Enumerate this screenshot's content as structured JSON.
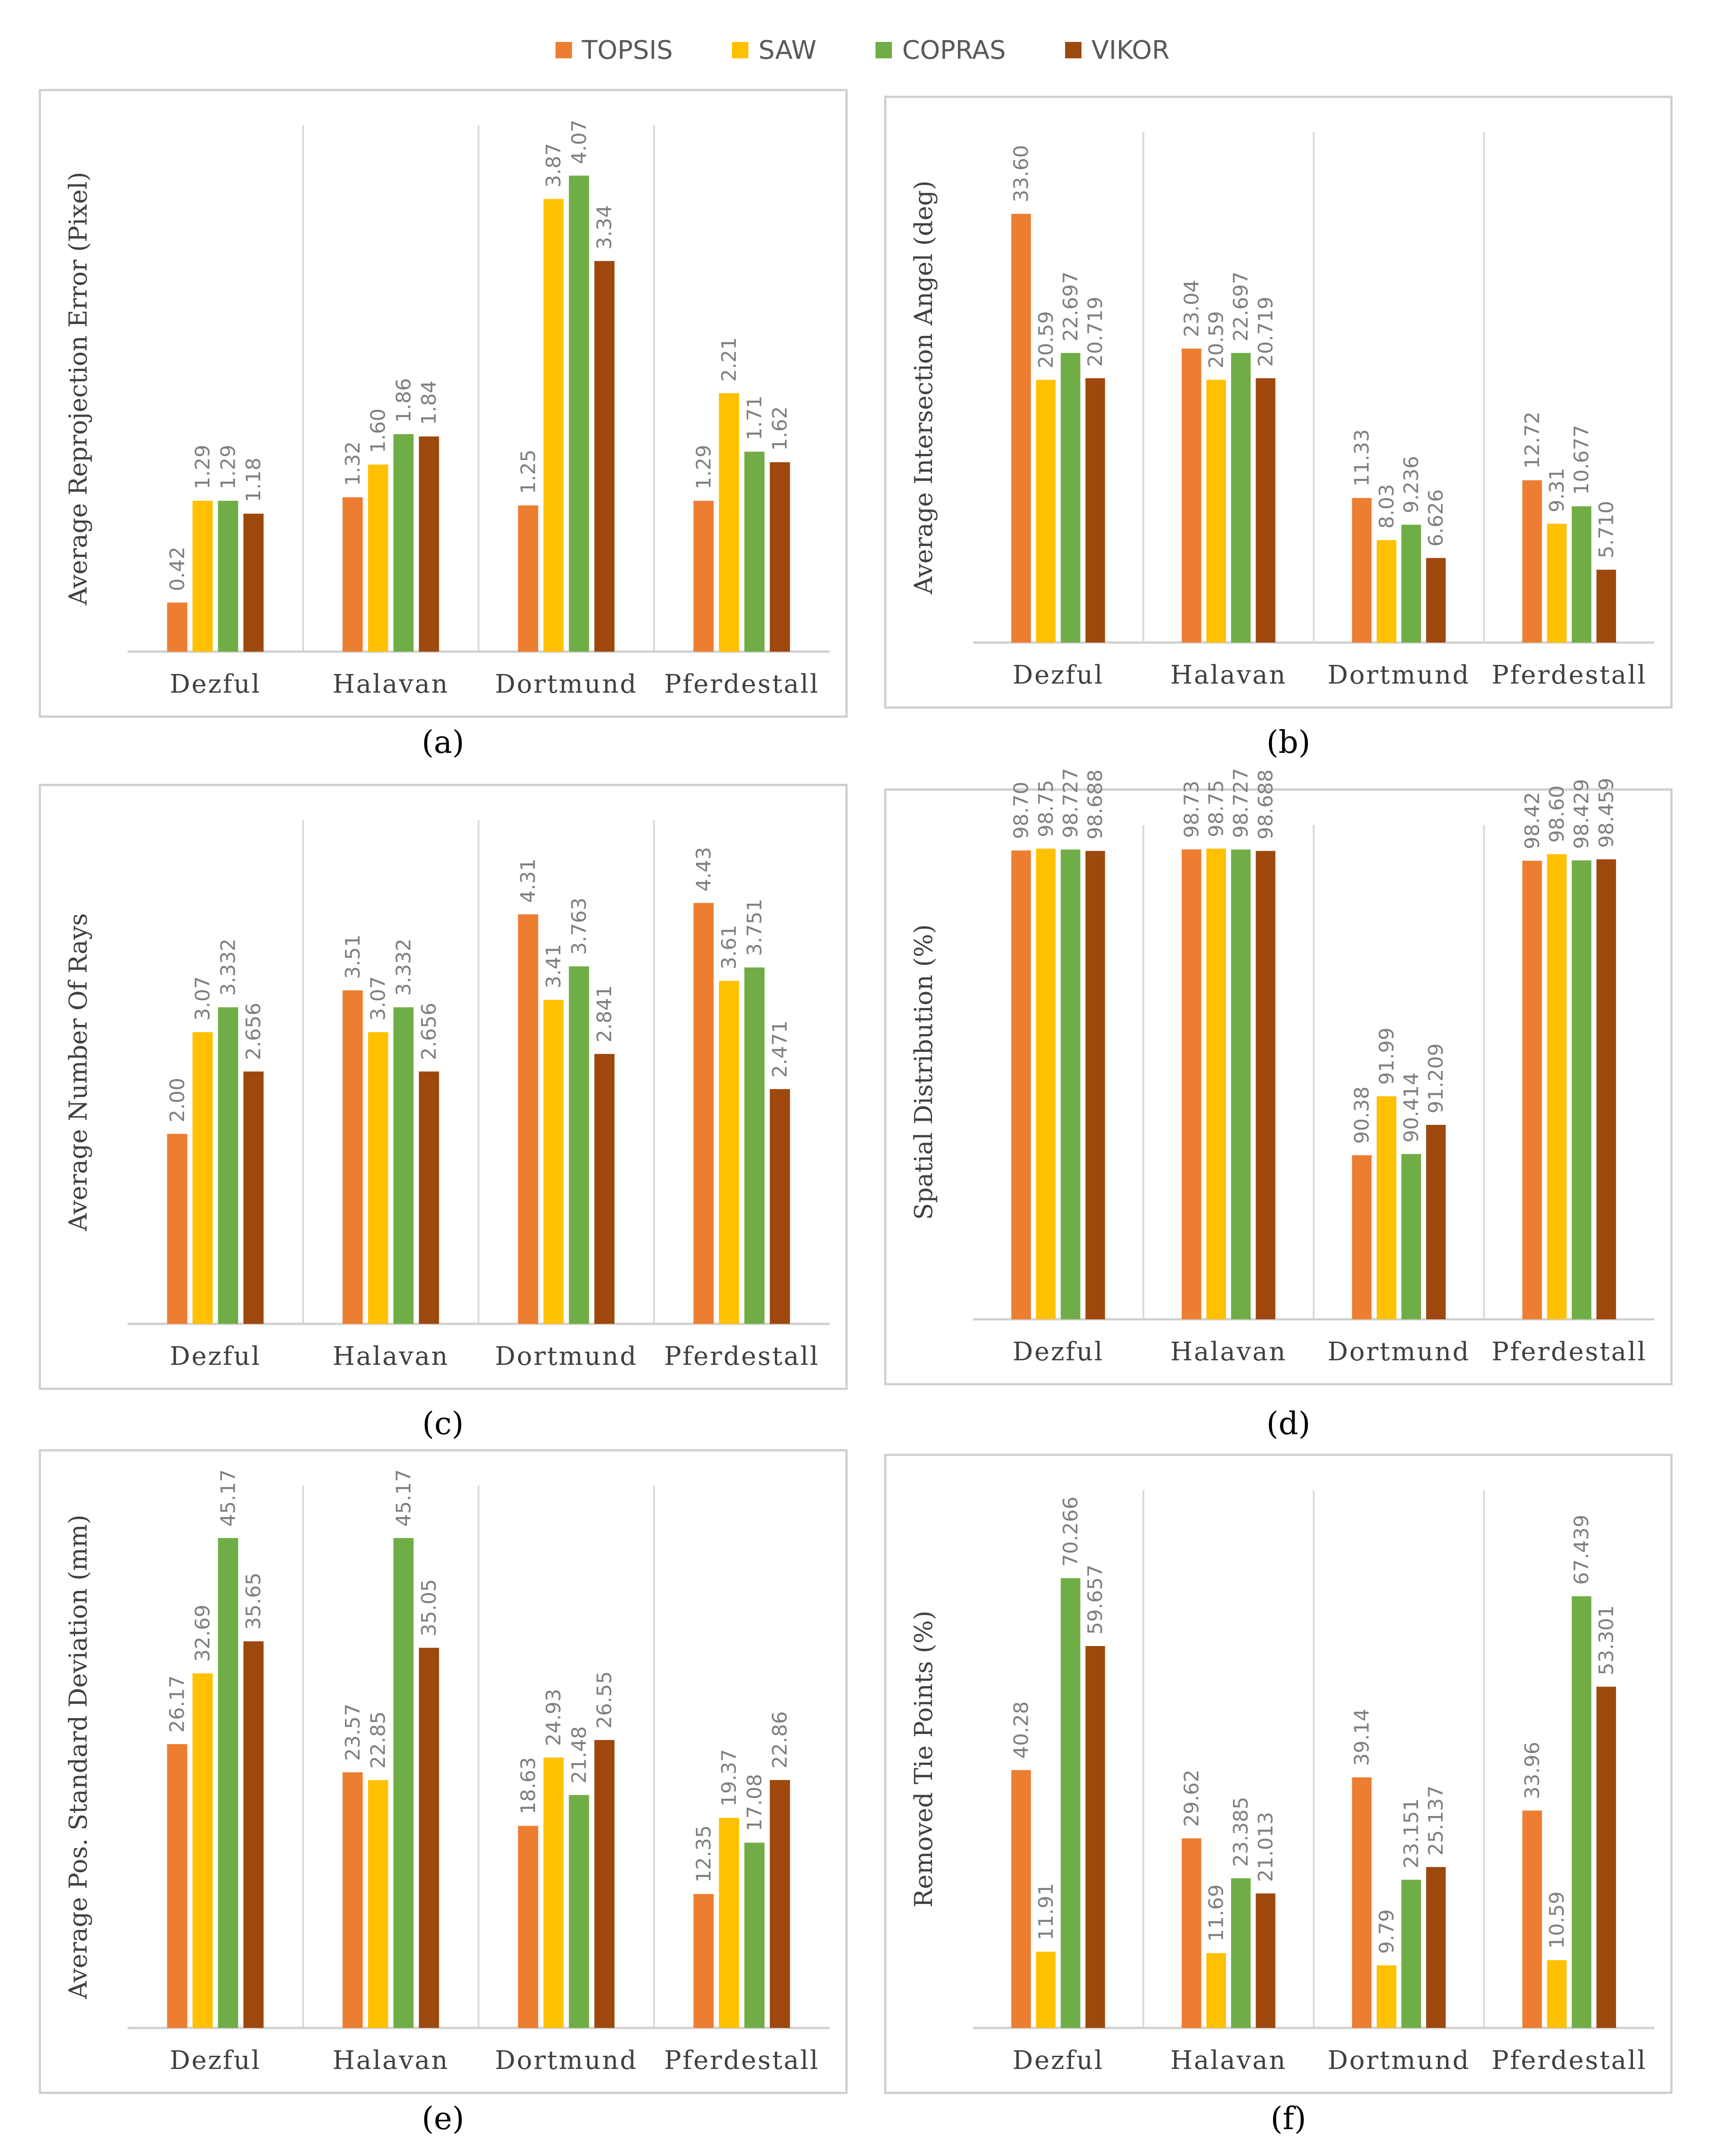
{
  "legend": [
    {
      "name": "TOPSIS",
      "color": "#ED7D31"
    },
    {
      "name": "SAW",
      "color": "#FFC000"
    },
    {
      "name": "COPRAS",
      "color": "#70AD47"
    },
    {
      "name": "VIKOR",
      "color": "#9E480E"
    }
  ],
  "chart_data": [
    {
      "type": "bar",
      "caption": "(a)",
      "ylabel": "Average Reprojection Error (Pixel)",
      "categories": [
        "Dezful",
        "Halavan",
        "Dortmund",
        "Pferdestall"
      ],
      "ylim": [
        0,
        4.5
      ],
      "series": [
        {
          "name": "TOPSIS",
          "values": [
            0.42,
            1.32,
            1.25,
            1.29
          ],
          "labels": [
            "0.42",
            "1.32",
            "1.25",
            "1.29"
          ]
        },
        {
          "name": "SAW",
          "values": [
            1.29,
            1.6,
            3.87,
            2.21
          ],
          "labels": [
            "1.29",
            "1.60",
            "3.87",
            "2.21"
          ]
        },
        {
          "name": "COPRAS",
          "values": [
            1.29,
            1.86,
            4.07,
            1.71
          ],
          "labels": [
            "1.29",
            "1.86",
            "4.07",
            "1.71"
          ]
        },
        {
          "name": "VIKOR",
          "values": [
            1.18,
            1.84,
            3.34,
            1.62
          ],
          "labels": [
            "1.18",
            "1.84",
            "3.34",
            "1.62"
          ]
        }
      ]
    },
    {
      "type": "bar",
      "caption": "(b)",
      "ylabel": "Average Intersection Angel (deg)",
      "categories": [
        "Dezful",
        "Halavan",
        "Dortmund",
        "Pferdestall"
      ],
      "ylim": [
        0,
        40
      ],
      "series": [
        {
          "name": "TOPSIS",
          "values": [
            33.6,
            23.04,
            11.33,
            12.72
          ],
          "labels": [
            "33.60",
            "23.04",
            "11.33",
            "12.72"
          ]
        },
        {
          "name": "SAW",
          "values": [
            20.59,
            20.59,
            8.03,
            9.31
          ],
          "labels": [
            "20.59",
            "20.59",
            "8.03",
            "9.31"
          ]
        },
        {
          "name": "COPRAS",
          "values": [
            22.697,
            22.697,
            9.236,
            10.677
          ],
          "labels": [
            "22.697",
            "22.697",
            "9.236",
            "10.677"
          ]
        },
        {
          "name": "VIKOR",
          "values": [
            20.719,
            20.719,
            6.626,
            5.71
          ],
          "labels": [
            "20.719",
            "20.719",
            "6.626",
            "5.710"
          ]
        }
      ]
    },
    {
      "type": "bar",
      "caption": "(c)",
      "ylabel": "Average Number Of Rays",
      "categories": [
        "Dezful",
        "Halavan",
        "Dortmund",
        "Pferdestall"
      ],
      "ylim": [
        0,
        5.3
      ],
      "series": [
        {
          "name": "TOPSIS",
          "values": [
            2.0,
            3.51,
            4.31,
            4.43
          ],
          "labels": [
            "2.00",
            "3.51",
            "4.31",
            "4.43"
          ]
        },
        {
          "name": "SAW",
          "values": [
            3.07,
            3.07,
            3.41,
            3.61
          ],
          "labels": [
            "3.07",
            "3.07",
            "3.41",
            "3.61"
          ]
        },
        {
          "name": "COPRAS",
          "values": [
            3.332,
            3.332,
            3.763,
            3.751
          ],
          "labels": [
            "3.332",
            "3.332",
            "3.763",
            "3.751"
          ]
        },
        {
          "name": "VIKOR",
          "values": [
            2.656,
            2.656,
            2.841,
            2.471
          ],
          "labels": [
            "2.656",
            "2.656",
            "2.841",
            "2.471"
          ]
        }
      ]
    },
    {
      "type": "bar",
      "caption": "(d)",
      "ylabel": "Spatial Distribution (%)",
      "categories": [
        "Dezful",
        "Halavan",
        "Dortmund",
        "Pferdestall"
      ],
      "ylim": [
        85.9,
        99.4
      ],
      "series": [
        {
          "name": "TOPSIS",
          "values": [
            98.7,
            98.73,
            90.38,
            98.42
          ],
          "labels": [
            "98.70",
            "98.73",
            "90.38",
            "98.42"
          ]
        },
        {
          "name": "SAW",
          "values": [
            98.75,
            98.75,
            91.99,
            98.6
          ],
          "labels": [
            "98.75",
            "98.75",
            "91.99",
            "98.60"
          ]
        },
        {
          "name": "COPRAS",
          "values": [
            98.727,
            98.727,
            90.414,
            98.429
          ],
          "labels": [
            "98.727",
            "98.727",
            "90.414",
            "98.429"
          ]
        },
        {
          "name": "VIKOR",
          "values": [
            98.688,
            98.688,
            91.209,
            98.459
          ],
          "labels": [
            "98.688",
            "98.688",
            "91.209",
            "98.459"
          ]
        }
      ]
    },
    {
      "type": "bar",
      "caption": "(e)",
      "ylabel": "Average Pos. Standard Deviation (mm)",
      "categories": [
        "Dezful",
        "Halavan",
        "Dortmund",
        "Pferdestall"
      ],
      "ylim": [
        0,
        50
      ],
      "series": [
        {
          "name": "TOPSIS",
          "values": [
            26.17,
            23.57,
            18.63,
            12.35
          ],
          "labels": [
            "26.17",
            "23.57",
            "18.63",
            "12.35"
          ]
        },
        {
          "name": "SAW",
          "values": [
            32.69,
            22.85,
            24.93,
            19.37
          ],
          "labels": [
            "32.69",
            "22.85",
            "24.93",
            "19.37"
          ]
        },
        {
          "name": "COPRAS",
          "values": [
            45.17,
            45.17,
            21.48,
            17.08
          ],
          "labels": [
            "45.17",
            "45.17",
            "21.48",
            "17.08"
          ]
        },
        {
          "name": "VIKOR",
          "values": [
            35.65,
            35.05,
            26.55,
            22.86
          ],
          "labels": [
            "35.65",
            "35.05",
            "26.55",
            "22.86"
          ]
        }
      ]
    },
    {
      "type": "bar",
      "caption": "(f)",
      "ylabel": "Removed Tie Points (%)",
      "categories": [
        "Dezful",
        "Halavan",
        "Dortmund",
        "Pferdestall"
      ],
      "ylim": [
        0,
        84
      ],
      "series": [
        {
          "name": "TOPSIS",
          "values": [
            40.28,
            29.62,
            39.14,
            33.96
          ],
          "labels": [
            "40.28",
            "29.62",
            "39.14",
            "33.96"
          ]
        },
        {
          "name": "SAW",
          "values": [
            11.91,
            11.69,
            9.79,
            10.59
          ],
          "labels": [
            "11.91",
            "11.69",
            "9.79",
            "10.59"
          ]
        },
        {
          "name": "COPRAS",
          "values": [
            70.266,
            23.385,
            23.151,
            67.439
          ],
          "labels": [
            "70.266",
            "23.385",
            "23.151",
            "67.439"
          ]
        },
        {
          "name": "VIKOR",
          "values": [
            59.657,
            21.013,
            25.137,
            53.301
          ],
          "labels": [
            "59.657",
            "21.013",
            "25.137",
            "53.301"
          ]
        }
      ]
    }
  ]
}
